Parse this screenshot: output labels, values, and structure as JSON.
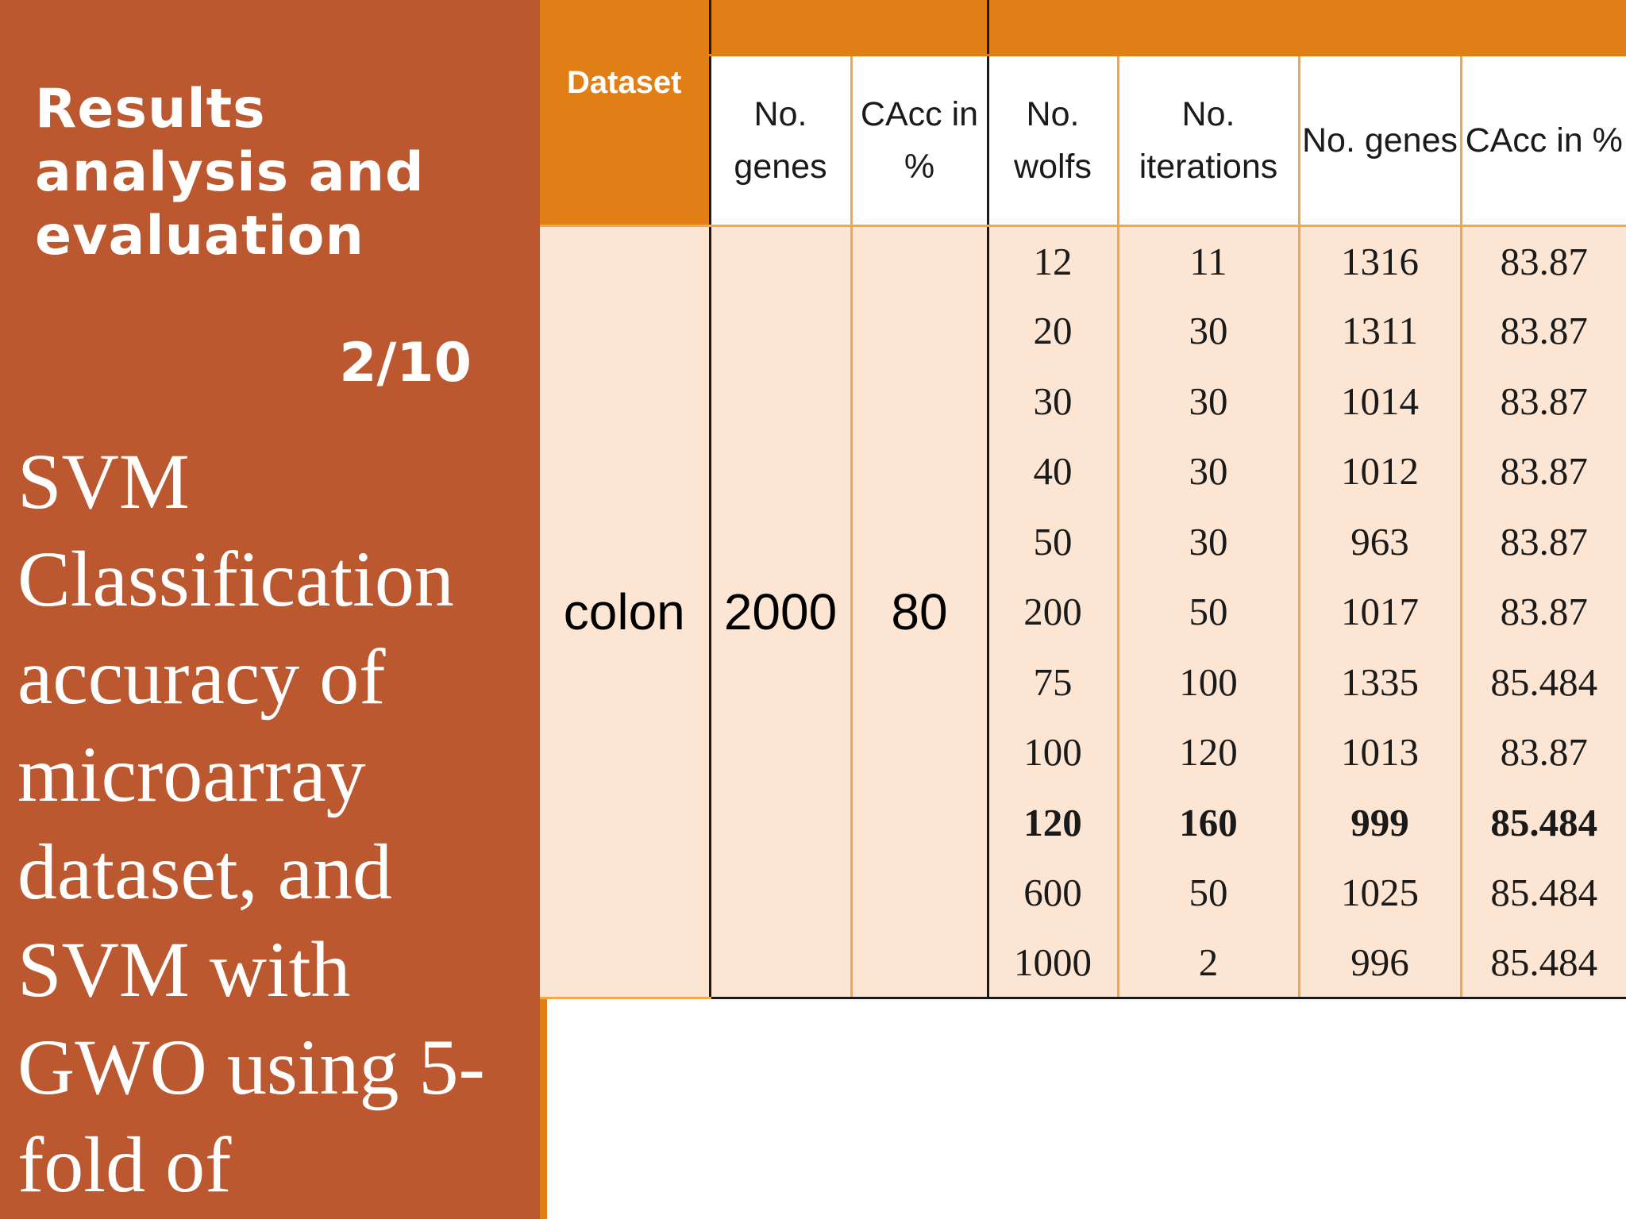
{
  "slide": {
    "heading": "Results analysis and evaluation",
    "slide_number": "2/10",
    "description": "SVM Classification accuracy of microarray dataset, and SVM with GWO using 5-fold of"
  },
  "table": {
    "headers": [
      "Dataset",
      "No. genes",
      "CAcc in %",
      "No. wolfs",
      "No. iterations",
      "No. genes",
      "CAcc in %"
    ],
    "dataset": "colon",
    "svm_genes": "2000",
    "svm_cacc": "80",
    "rows": [
      {
        "wolfs": "12",
        "iterations": "11",
        "genes": "1316",
        "cacc": "83.87"
      },
      {
        "wolfs": "20",
        "iterations": "30",
        "genes": "1311",
        "cacc": "83.87"
      },
      {
        "wolfs": "30",
        "iterations": "30",
        "genes": "1014",
        "cacc": "83.87"
      },
      {
        "wolfs": "40",
        "iterations": "30",
        "genes": "1012",
        "cacc": "83.87"
      },
      {
        "wolfs": "50",
        "iterations": "30",
        "genes": "963",
        "cacc": "83.87"
      },
      {
        "wolfs": "200",
        "iterations": "50",
        "genes": "1017",
        "cacc": "83.87"
      },
      {
        "wolfs": "75",
        "iterations": "100",
        "genes": "1335",
        "cacc": "85.484"
      },
      {
        "wolfs": "100",
        "iterations": "120",
        "genes": "1013",
        "cacc": "83.87"
      },
      {
        "wolfs": "120",
        "iterations": "160",
        "genes": "999",
        "cacc": "85.484",
        "bold": true
      },
      {
        "wolfs": "600",
        "iterations": "50",
        "genes": "1025",
        "cacc": "85.484"
      },
      {
        "wolfs": "1000",
        "iterations": "2",
        "genes": "996",
        "cacc": "85.484"
      }
    ]
  },
  "colors": {
    "panel": "#bb582f",
    "accent": "#e07f16",
    "row_fill": "#fce6d3"
  }
}
